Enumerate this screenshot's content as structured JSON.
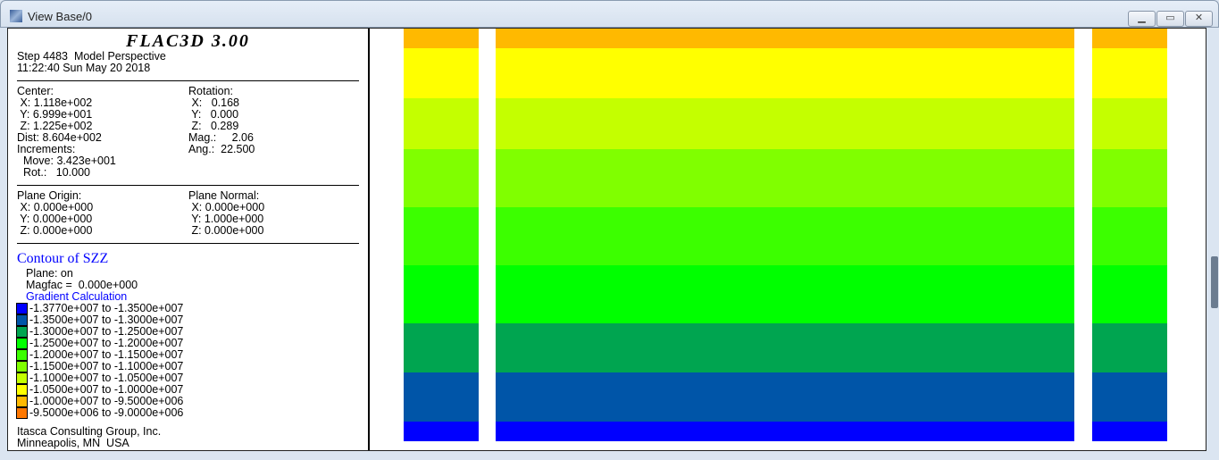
{
  "window": {
    "title": "View Base/0",
    "buttons": [
      "minimize",
      "restore",
      "close"
    ]
  },
  "header": {
    "logo": "FLAC3D 3.00",
    "step": "Step 4483  Model Perspective",
    "datetime": "11:22:40 Sun May 20 2018"
  },
  "view": {
    "center_label": "Center:",
    "center_x": " X: 1.118e+002",
    "center_y": " Y: 6.999e+001",
    "center_z": " Z: 1.225e+002",
    "dist": "Dist: 8.604e+002",
    "increments": "Increments:",
    "move": "  Move: 3.423e+001",
    "rot": "  Rot.:   10.000",
    "rotation_label": "Rotation:",
    "rot_x": " X:   0.168",
    "rot_y": " Y:   0.000",
    "rot_z": " Z:   0.289",
    "mag": "Mag.:     2.06",
    "ang": "Ang.:  22.500"
  },
  "plane": {
    "origin_label": "Plane Origin:",
    "origin_x": " X: 0.000e+000",
    "origin_y": " Y: 0.000e+000",
    "origin_z": " Z: 0.000e+000",
    "normal_label": "Plane Normal:",
    "normal_x": " X: 0.000e+000",
    "normal_y": " Y: 1.000e+000",
    "normal_z": " Z: 0.000e+000"
  },
  "contour": {
    "title": "Contour of SZZ",
    "plane": "Plane: on",
    "magfac": "Magfac =  0.000e+000",
    "calc": "Gradient Calculation",
    "legend": [
      {
        "label": "-1.3770e+007 to -1.3500e+007",
        "color": "#0000ff"
      },
      {
        "label": "-1.3500e+007 to -1.3000e+007",
        "color": "#0055a8"
      },
      {
        "label": "-1.3000e+007 to -1.2500e+007",
        "color": "#00a550"
      },
      {
        "label": "-1.2500e+007 to -1.2000e+007",
        "color": "#00ff00"
      },
      {
        "label": "-1.2000e+007 to -1.1500e+007",
        "color": "#3cff00"
      },
      {
        "label": "-1.1500e+007 to -1.1000e+007",
        "color": "#80ff00"
      },
      {
        "label": "-1.1000e+007 to -1.0500e+007",
        "color": "#c4ff00"
      },
      {
        "label": "-1.0500e+007 to -1.0000e+007",
        "color": "#ffff00"
      },
      {
        "label": "-1.0000e+007 to -9.5000e+006",
        "color": "#ffb900"
      },
      {
        "label": "-9.5000e+006 to -9.0000e+006",
        "color": "#ff7800"
      }
    ]
  },
  "footer": {
    "company": "Itasca Consulting Group, Inc.",
    "location": "Minneapolis, MN  USA"
  }
}
